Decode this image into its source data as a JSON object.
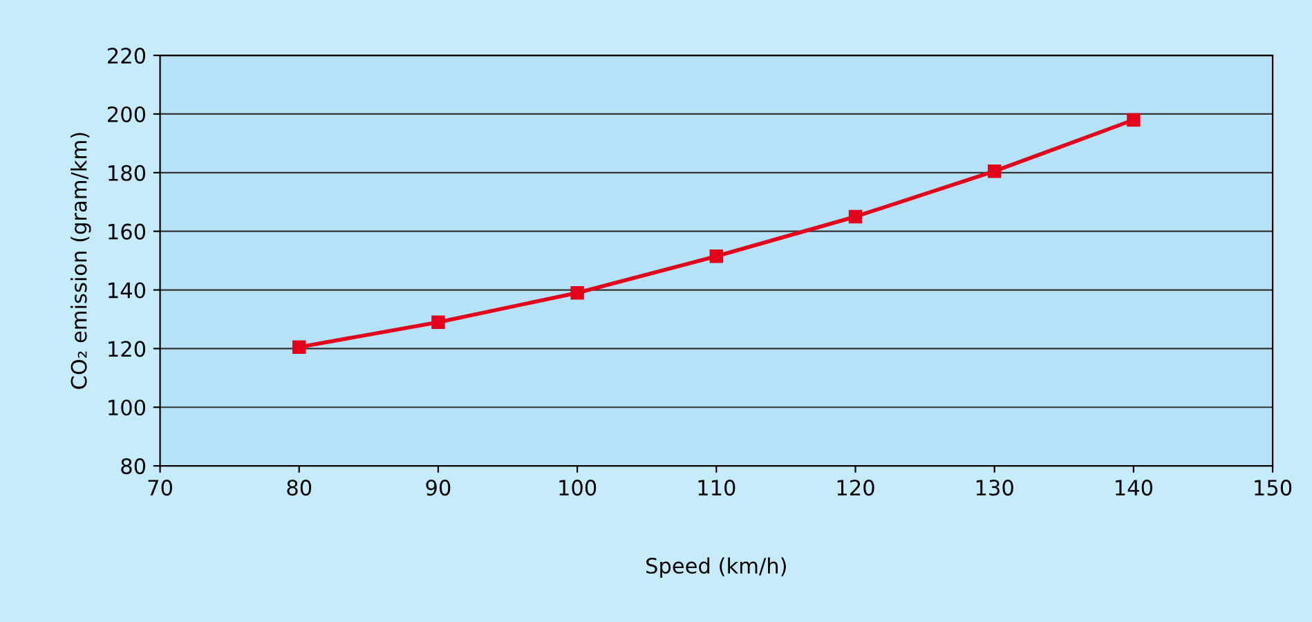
{
  "chart_data": {
    "type": "line",
    "xlabel": "Speed (km/h)",
    "ylabel": "CO₂ emission (gram/km)",
    "x": [
      80,
      90,
      100,
      110,
      120,
      130,
      140
    ],
    "series": [
      {
        "color": "#e3001b",
        "values": [
          120.5,
          129,
          139,
          151.5,
          165,
          180.5,
          198
        ]
      }
    ],
    "xlim": [
      70,
      150
    ],
    "xticks": [
      70,
      80,
      90,
      100,
      110,
      120,
      130,
      140,
      150
    ],
    "ylim": [
      80,
      220
    ],
    "yticks": [
      80,
      100,
      120,
      140,
      160,
      180,
      200,
      220
    ],
    "grid": "y",
    "marker": "square",
    "line_style": "solid",
    "legend": false
  }
}
